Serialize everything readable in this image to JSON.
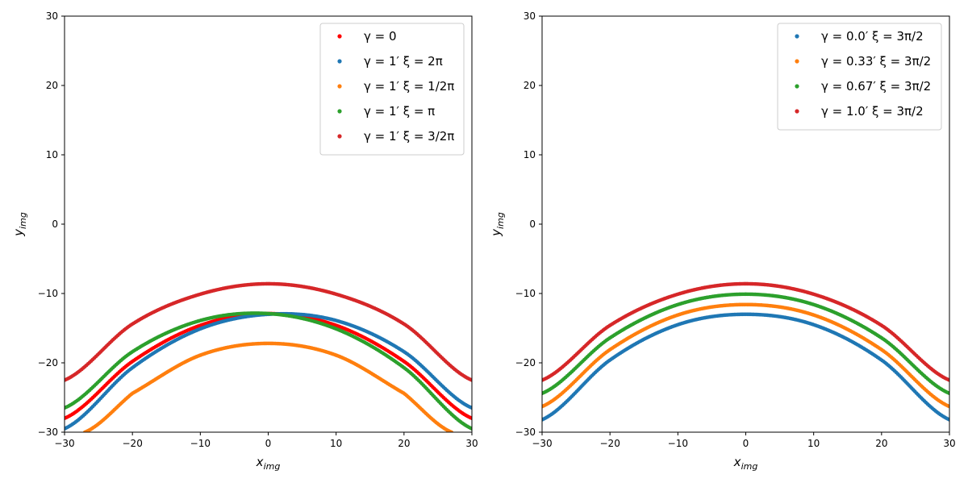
{
  "chart_data": [
    {
      "type": "scatter",
      "title": "",
      "xlabel": "x",
      "xlabel_sub": "img",
      "ylabel": "y",
      "ylabel_sub": "img",
      "xlim": [
        -30,
        30
      ],
      "ylim": [
        -30,
        30
      ],
      "xticks": [
        -30,
        -20,
        -10,
        0,
        10,
        20,
        30
      ],
      "yticks": [
        -30,
        -20,
        -10,
        0,
        10,
        20,
        30
      ],
      "xtick_labels": [
        "−30",
        "−20",
        "−10",
        "0",
        "10",
        "20",
        "30"
      ],
      "ytick_labels": [
        "−30",
        "−20",
        "−10",
        "0",
        "10",
        "20",
        "30"
      ],
      "legend_position": "top-right",
      "series": [
        {
          "name": "γ = 0",
          "color": "#ff0000",
          "x": [
            -30,
            -20,
            -10,
            0,
            10,
            20,
            30
          ],
          "y": [
            -28.0,
            -19.8,
            -14.6,
            -12.9,
            -14.6,
            -19.8,
            -28.0
          ]
        },
        {
          "name": "γ = 1′ ξ = 2π",
          "color": "#1f77b4",
          "x": [
            -30,
            -20,
            -10,
            0,
            10,
            20,
            30
          ],
          "y": [
            -29.5,
            -20.7,
            -15.1,
            -13.0,
            -13.9,
            -18.4,
            -26.5
          ]
        },
        {
          "name": "γ = 1′ ξ = 1/2π",
          "color": "#ff7f0e",
          "x": [
            -27,
            -20,
            -10,
            0,
            10,
            20,
            27
          ],
          "y": [
            -30.0,
            -24.4,
            -18.9,
            -17.2,
            -18.9,
            -24.4,
            -30.0
          ]
        },
        {
          "name": "γ = 1′ ξ = π",
          "color": "#2ca02c",
          "x": [
            -30,
            -20,
            -10,
            0,
            10,
            20,
            30
          ],
          "y": [
            -26.5,
            -18.4,
            -13.9,
            -12.9,
            -15.1,
            -20.7,
            -29.5
          ]
        },
        {
          "name": "γ = 1′ ξ = 3/2π",
          "color": "#d62728",
          "x": [
            -30,
            -20,
            -10,
            0,
            10,
            20,
            30
          ],
          "y": [
            -22.5,
            -14.4,
            -10.1,
            -8.6,
            -10.1,
            -14.4,
            -22.5
          ]
        }
      ]
    },
    {
      "type": "scatter",
      "title": "",
      "xlabel": "x",
      "xlabel_sub": "img",
      "ylabel": "y",
      "ylabel_sub": "img",
      "xlim": [
        -30,
        30
      ],
      "ylim": [
        -30,
        30
      ],
      "xticks": [
        -30,
        -20,
        -10,
        0,
        10,
        20,
        30
      ],
      "yticks": [
        -30,
        -20,
        -10,
        0,
        10,
        20,
        30
      ],
      "xtick_labels": [
        "−30",
        "−20",
        "−10",
        "0",
        "10",
        "20",
        "30"
      ],
      "ytick_labels": [
        "−30",
        "−20",
        "−10",
        "0",
        "10",
        "20",
        "30"
      ],
      "legend_position": "top-right",
      "series": [
        {
          "name": "γ = 0.0′ ξ = 3π/2",
          "color": "#1f77b4",
          "x": [
            -30,
            -20,
            -10,
            0,
            10,
            20,
            30
          ],
          "y": [
            -28.2,
            -19.6,
            -14.5,
            -13.0,
            -14.5,
            -19.6,
            -28.2
          ]
        },
        {
          "name": "γ = 0.33′ ξ = 3π/2",
          "color": "#ff7f0e",
          "x": [
            -30,
            -20,
            -10,
            0,
            10,
            20,
            30
          ],
          "y": [
            -26.3,
            -18.1,
            -13.1,
            -11.6,
            -13.1,
            -18.1,
            -26.3
          ]
        },
        {
          "name": "γ = 0.67′ ξ = 3π/2",
          "color": "#2ca02c",
          "x": [
            -30,
            -20,
            -10,
            0,
            10,
            20,
            30
          ],
          "y": [
            -24.4,
            -16.4,
            -11.6,
            -10.1,
            -11.6,
            -16.4,
            -24.4
          ]
        },
        {
          "name": "γ = 1.0′ ξ = 3π/2",
          "color": "#d62728",
          "x": [
            -30,
            -20,
            -10,
            0,
            10,
            20,
            30
          ],
          "y": [
            -22.5,
            -14.6,
            -10.1,
            -8.6,
            -10.1,
            -14.6,
            -22.5
          ]
        }
      ]
    }
  ]
}
